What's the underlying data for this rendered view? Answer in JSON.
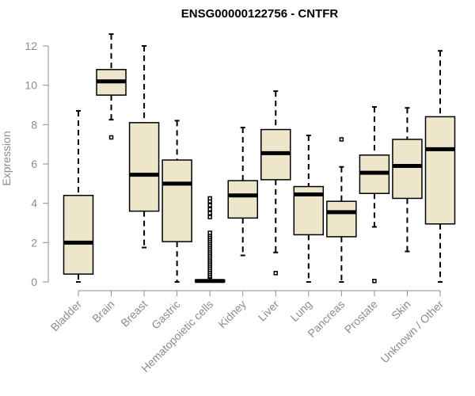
{
  "chart_data": {
    "type": "boxplot",
    "title": "ENSG00000122756 - CNTFR",
    "xlabel": "",
    "ylabel": "Expression",
    "ylim": [
      0,
      12.6
    ],
    "yticks": [
      0,
      2,
      4,
      6,
      8,
      10,
      12
    ],
    "grid": false,
    "legend": "none",
    "categories": [
      "Bladder",
      "Brain",
      "Breast",
      "Gastric",
      "Hematopoietic cells",
      "Kidney",
      "Liver",
      "Lung",
      "Pancreas",
      "Prostate",
      "Skin",
      "Unknown / Other"
    ],
    "boxes": [
      {
        "whisker_low": 0.0,
        "q1": 0.4,
        "median": 2.0,
        "q3": 4.4,
        "whisker_high": 8.7,
        "outliers": []
      },
      {
        "whisker_low": 8.25,
        "q1": 9.5,
        "median": 10.2,
        "q3": 10.8,
        "whisker_high": 12.6,
        "outliers": [
          7.35
        ]
      },
      {
        "whisker_low": 1.75,
        "q1": 3.6,
        "median": 5.45,
        "q3": 8.1,
        "whisker_high": 12.0,
        "outliers": []
      },
      {
        "whisker_low": 0.0,
        "q1": 2.05,
        "median": 5.0,
        "q3": 6.2,
        "whisker_high": 8.2,
        "outliers": []
      },
      {
        "whisker_low": 0.0,
        "q1": 0.0,
        "median": 0.05,
        "q3": 0.1,
        "whisker_high": 0.2,
        "outliers": [
          0.3,
          0.4,
          0.5,
          0.6,
          0.7,
          0.8,
          0.9,
          1.0,
          1.1,
          1.2,
          1.3,
          1.4,
          1.5,
          1.6,
          1.7,
          1.8,
          1.9,
          2.0,
          2.1,
          2.2,
          2.3,
          2.4,
          2.5,
          3.3,
          3.5,
          3.7,
          3.9,
          4.1,
          4.25
        ]
      },
      {
        "whisker_low": 1.35,
        "q1": 3.25,
        "median": 4.4,
        "q3": 5.15,
        "whisker_high": 7.85,
        "outliers": []
      },
      {
        "whisker_low": 1.5,
        "q1": 5.2,
        "median": 6.55,
        "q3": 7.75,
        "whisker_high": 9.7,
        "outliers": [
          0.45
        ]
      },
      {
        "whisker_low": 0.0,
        "q1": 2.4,
        "median": 4.45,
        "q3": 4.85,
        "whisker_high": 7.45,
        "outliers": []
      },
      {
        "whisker_low": 0.0,
        "q1": 2.3,
        "median": 3.55,
        "q3": 4.1,
        "whisker_high": 5.85,
        "outliers": [
          7.25
        ]
      },
      {
        "whisker_low": 2.8,
        "q1": 4.5,
        "median": 5.55,
        "q3": 6.45,
        "whisker_high": 8.9,
        "outliers": [
          0.05
        ]
      },
      {
        "whisker_low": 1.55,
        "q1": 4.25,
        "median": 5.9,
        "q3": 7.25,
        "whisker_high": 8.85,
        "outliers": []
      },
      {
        "whisker_low": 0.0,
        "q1": 2.95,
        "median": 6.75,
        "q3": 8.4,
        "whisker_high": 11.75,
        "outliers": []
      }
    ],
    "colors": {
      "box_fill": "#ede6cb",
      "box_stroke": "#000000",
      "median": "#000000",
      "axis": "#8c8c8c",
      "title": "#000000"
    }
  }
}
